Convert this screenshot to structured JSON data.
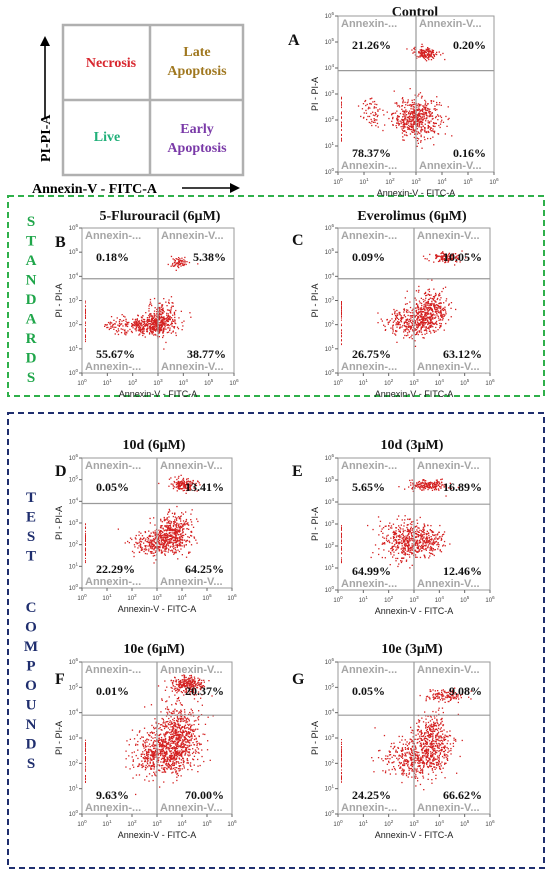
{
  "legend": {
    "y_axis_label": "PI-PI-A",
    "x_axis_label": "Annexin-V - FITC-A",
    "quadrants": {
      "top_left": "Necrosis",
      "top_right": [
        "Late",
        "Apoptosis"
      ],
      "bottom_left": "Live",
      "bottom_right": [
        "Early",
        "Apoptosis"
      ]
    },
    "colors": {
      "necrosis": "#d8262e",
      "late": "#a07820",
      "live": "#22b07a",
      "early": "#7a3aa8"
    }
  },
  "groups": [
    {
      "id": "standards",
      "letters": [
        "S",
        "T",
        "A",
        "N",
        "D",
        "A",
        "R",
        "D",
        "S"
      ],
      "color": "#1fa64a",
      "border_color": "#2fb04a"
    },
    {
      "id": "test",
      "words": [
        [
          "T",
          "E",
          "S",
          "T"
        ],
        [
          "C",
          "O",
          "M",
          "P",
          "O",
          "U",
          "N",
          "D",
          "S"
        ]
      ],
      "color": "#1f2e6e",
      "border_color": "#1f2e6e"
    }
  ],
  "plot_common": {
    "quadrant_label": "Annexin-...",
    "quadrant_label_right": "Annexin-V...",
    "xlabel": "Annexin-V - FITC-A",
    "ylabel": "PI - PI-A",
    "ticks": [
      "10",
      "10",
      "10",
      "10",
      "10",
      "10",
      "10"
    ],
    "tick_exponents": [
      "0",
      "1",
      "2",
      "3",
      "4",
      "5",
      "6"
    ],
    "dot_color": "#d42020"
  },
  "chart_data": [
    {
      "type": "scatter",
      "panel": "A",
      "title": "Control",
      "xscale": "log",
      "yscale": "log",
      "xlim": [
        1,
        1000000
      ],
      "ylim": [
        1,
        1000000
      ],
      "quadrants": {
        "upper_left": "21.26%",
        "upper_right": "0.20%",
        "lower_left": "78.37%",
        "lower_right": "0.16%"
      }
    },
    {
      "type": "scatter",
      "panel": "B",
      "title": "5-Flurouracil (6µM)",
      "xscale": "log",
      "yscale": "log",
      "xlim": [
        1,
        1000000
      ],
      "ylim": [
        1,
        1000000
      ],
      "quadrants": {
        "upper_left": "0.18%",
        "upper_right": "5.38%",
        "lower_left": "55.67%",
        "lower_right": "38.77%"
      }
    },
    {
      "type": "scatter",
      "panel": "C",
      "title": "Everolimus (6µM)",
      "xscale": "log",
      "yscale": "log",
      "xlim": [
        1,
        1000000
      ],
      "ylim": [
        1,
        1000000
      ],
      "quadrants": {
        "upper_left": "0.09%",
        "upper_right": "10.05%",
        "lower_left": "26.75%",
        "lower_right": "63.12%"
      }
    },
    {
      "type": "scatter",
      "panel": "D",
      "title": "10d (6µM)",
      "xscale": "log",
      "yscale": "log",
      "xlim": [
        1,
        1000000
      ],
      "ylim": [
        1,
        1000000
      ],
      "quadrants": {
        "upper_left": "0.05%",
        "upper_right": "13.41%",
        "lower_left": "22.29%",
        "lower_right": "64.25%"
      }
    },
    {
      "type": "scatter",
      "panel": "E",
      "title": "10d (3µM)",
      "xscale": "log",
      "yscale": "log",
      "xlim": [
        1,
        1000000
      ],
      "ylim": [
        1,
        1000000
      ],
      "quadrants": {
        "upper_left": "5.65%",
        "upper_right": "16.89%",
        "lower_left": "64.99%",
        "lower_right": "12.46%"
      }
    },
    {
      "type": "scatter",
      "panel": "F",
      "title": "10e (6µM)",
      "xscale": "log",
      "yscale": "log",
      "xlim": [
        1,
        1000000
      ],
      "ylim": [
        1,
        1000000
      ],
      "quadrants": {
        "upper_left": "0.01%",
        "upper_right": "20.37%",
        "lower_left": "9.63%",
        "lower_right": "70.00%"
      }
    },
    {
      "type": "scatter",
      "panel": "G",
      "title": "10e (3µM)",
      "xscale": "log",
      "yscale": "log",
      "xlim": [
        1,
        1000000
      ],
      "ylim": [
        1,
        1000000
      ],
      "quadrants": {
        "upper_left": "0.05%",
        "upper_right": "9.08%",
        "lower_left": "24.25%",
        "lower_right": "66.62%"
      }
    }
  ]
}
